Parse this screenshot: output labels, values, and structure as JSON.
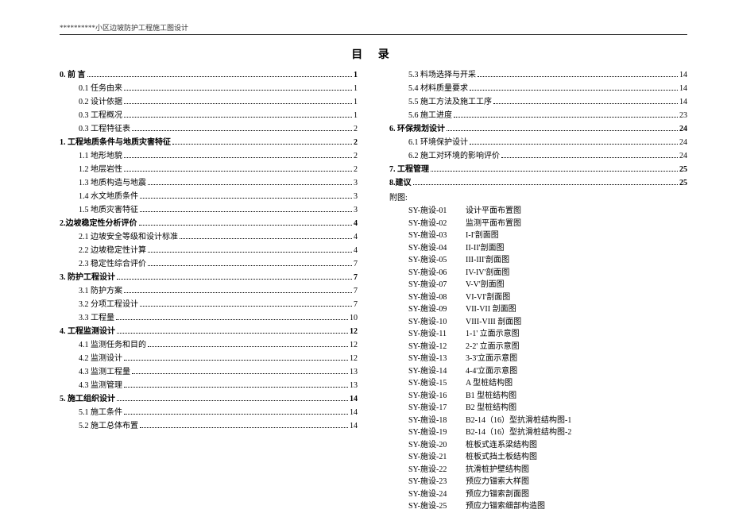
{
  "header": "**********小区边坡防护工程施工图设计",
  "title": "目  录",
  "left": [
    {
      "type": "bold",
      "label": "0. 前 言",
      "page": "1"
    },
    {
      "type": "sub",
      "label": "0.1 任务由来",
      "page": "1"
    },
    {
      "type": "sub",
      "label": "0.2 设计依据",
      "page": "1"
    },
    {
      "type": "sub",
      "label": "0.3 工程概况",
      "page": "1"
    },
    {
      "type": "sub",
      "label": "0.3 工程特征表",
      "page": "2"
    },
    {
      "type": "bold",
      "label": "1. 工程地质条件与地质灾害特征",
      "page": "2"
    },
    {
      "type": "sub",
      "label": "1.1 地形地貌",
      "page": "2"
    },
    {
      "type": "sub",
      "label": "1.2 地层岩性",
      "page": "2"
    },
    {
      "type": "sub",
      "label": "1.3 地质构造与地震",
      "page": "3"
    },
    {
      "type": "sub",
      "label": "1.4 水文地质条件",
      "page": "3"
    },
    {
      "type": "sub",
      "label": "1.5 地质灾害特征",
      "page": "3"
    },
    {
      "type": "bold",
      "label": "2.边坡稳定性分析评价",
      "page": "4"
    },
    {
      "type": "sub",
      "label": "2.1 边坡安全等级和设计标准",
      "page": "4"
    },
    {
      "type": "sub",
      "label": "2.2 边坡稳定性计算",
      "page": "4"
    },
    {
      "type": "sub",
      "label": "2.3 稳定性综合评价",
      "page": "7"
    },
    {
      "type": "bold",
      "label": "3. 防护工程设计",
      "page": "7"
    },
    {
      "type": "sub",
      "label": "3.1 防护方案",
      "page": "7"
    },
    {
      "type": "sub",
      "label": "3.2 分项工程设计",
      "page": "7"
    },
    {
      "type": "sub",
      "label": "3.3 工程量",
      "page": "10"
    },
    {
      "type": "bold",
      "label": "4. 工程监测设计",
      "page": "12"
    },
    {
      "type": "sub",
      "label": "4.1 监测任务和目的",
      "page": "12"
    },
    {
      "type": "sub",
      "label": "4.2 监测设计",
      "page": "12"
    },
    {
      "type": "sub",
      "label": "4.3 监测工程量",
      "page": "13"
    },
    {
      "type": "sub",
      "label": "4.3 监测管理",
      "page": "13"
    },
    {
      "type": "bold",
      "label": "5. 施工组织设计",
      "page": "14"
    },
    {
      "type": "sub",
      "label": "5.1 施工条件",
      "page": "14"
    },
    {
      "type": "sub",
      "label": "5.2 施工总体布置",
      "page": "14"
    }
  ],
  "rightTop": [
    {
      "type": "sub",
      "label": "5.3 料场选择与开采",
      "page": "14"
    },
    {
      "type": "sub",
      "label": "5.4 材料质量要求",
      "page": "14"
    },
    {
      "type": "sub",
      "label": "5.5 施工方法及施工工序",
      "page": "14"
    },
    {
      "type": "sub",
      "label": "5.6 施工进度",
      "page": "23"
    },
    {
      "type": "bold",
      "label": "6. 环保规划设计",
      "page": "24"
    },
    {
      "type": "sub",
      "label": "6.1 环境保护设计",
      "page": "24"
    },
    {
      "type": "sub",
      "label": "6.2 施工对环境的影响评价",
      "page": "24"
    },
    {
      "type": "bold",
      "label": "7. 工程管理",
      "page": "25"
    },
    {
      "type": "bold",
      "label": "8.建议",
      "page": "25"
    }
  ],
  "appendixTitle": "附图:",
  "appendix": [
    {
      "code": "SY-施设-01",
      "name": "设计平面布置图"
    },
    {
      "code": "SY-施设-02",
      "name": "监测平面布置图"
    },
    {
      "code": "SY-施设-03",
      "name": "I-I'剖面图"
    },
    {
      "code": "SY-施设-04",
      "name": "II-II'剖面图"
    },
    {
      "code": "SY-施设-05",
      "name": "III-III'剖面图"
    },
    {
      "code": "SY-施设-06",
      "name": "IV-IV'剖面图"
    },
    {
      "code": "SY-施设-07",
      "name": "V-V'剖面图"
    },
    {
      "code": "SY-施设-08",
      "name": "VI-VI'剖面图"
    },
    {
      "code": "SY-施设-09",
      "name": "VII-VII 剖面图"
    },
    {
      "code": "SY-施设-10",
      "name": "VIII-VIII 剖面图"
    },
    {
      "code": "SY-施设-11",
      "name": "1-1' 立面示意图"
    },
    {
      "code": "SY-施设-12",
      "name": "2-2' 立面示意图"
    },
    {
      "code": "SY-施设-13",
      "name": "3-3'立面示意图"
    },
    {
      "code": "SY-施设-14",
      "name": "4-4'立面示意图"
    },
    {
      "code": "SY-施设-15",
      "name": "A 型桩结构图"
    },
    {
      "code": "SY-施设-16",
      "name": "B1 型桩结构图"
    },
    {
      "code": "SY-施设-17",
      "name": "B2 型桩结构图"
    },
    {
      "code": "SY-施设-18",
      "name": "B2-14（16）型抗滑桩结构图-1"
    },
    {
      "code": "SY-施设-19",
      "name": "B2-14（16）型抗滑桩结构图-2"
    },
    {
      "code": "SY-施设-20",
      "name": "桩板式连系梁结构图"
    },
    {
      "code": "SY-施设-21",
      "name": "桩板式挡土板结构图"
    },
    {
      "code": "SY-施设-22",
      "name": "抗滑桩护壁结构图"
    },
    {
      "code": "SY-施设-23",
      "name": "预应力锚索大样图"
    },
    {
      "code": "SY-施设-24",
      "name": "预应力锚索剖面图"
    },
    {
      "code": "SY-施设-25",
      "name": "预应力锚索细部构造图"
    }
  ]
}
